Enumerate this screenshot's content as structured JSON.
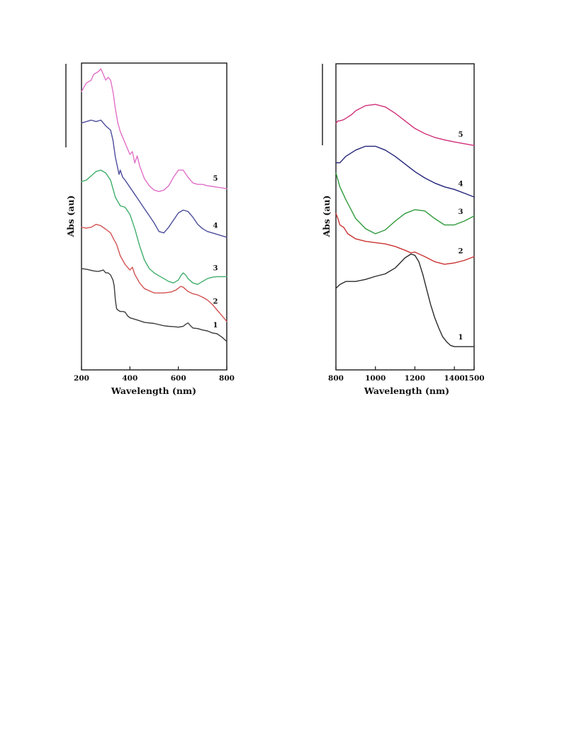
{
  "chart_data": [
    {
      "type": "line",
      "title": "",
      "xlabel": "Wavelength (nm)",
      "ylabel": "Abs (au)",
      "xlim": [
        200,
        800
      ],
      "ylim": [
        0,
        10
      ],
      "xticks": [
        "200",
        "400",
        "600",
        "800"
      ],
      "grid": false,
      "legend": "none",
      "series": [
        {
          "name": "1",
          "color": "#3c3c3c",
          "x": [
            200,
            220,
            250,
            270,
            290,
            300,
            310,
            320,
            330,
            335,
            340,
            345,
            350,
            360,
            370,
            380,
            390,
            400,
            430,
            460,
            500,
            540,
            560,
            580,
            600,
            620,
            630,
            640,
            650,
            660,
            680,
            700,
            720,
            740,
            760,
            780,
            800
          ],
          "y": [
            3.0,
            2.98,
            2.92,
            2.9,
            2.95,
            2.85,
            2.85,
            2.78,
            2.6,
            2.4,
            1.9,
            1.6,
            1.55,
            1.5,
            1.5,
            1.48,
            1.35,
            1.28,
            1.2,
            1.12,
            1.08,
            1.0,
            0.98,
            0.97,
            0.95,
            0.98,
            1.05,
            1.1,
            1.0,
            0.92,
            0.9,
            0.85,
            0.82,
            0.75,
            0.72,
            0.6,
            0.45
          ]
        },
        {
          "name": "2",
          "color": "#d25252",
          "x": [
            200,
            220,
            240,
            260,
            280,
            300,
            320,
            335,
            345,
            360,
            380,
            400,
            410,
            420,
            440,
            460,
            500,
            540,
            570,
            590,
            610,
            620,
            640,
            660,
            680,
            700,
            720,
            740,
            760,
            780,
            800
          ],
          "y": [
            4.45,
            4.42,
            4.45,
            4.55,
            4.5,
            4.38,
            4.25,
            4.0,
            3.85,
            3.45,
            3.15,
            2.95,
            3.05,
            2.8,
            2.5,
            2.3,
            2.15,
            2.15,
            2.18,
            2.25,
            2.38,
            2.35,
            2.2,
            2.12,
            2.08,
            2.0,
            1.9,
            1.75,
            1.55,
            1.35,
            1.15
          ]
        },
        {
          "name": "3",
          "color": "#3fae6b",
          "x": [
            200,
            220,
            240,
            260,
            280,
            300,
            320,
            340,
            360,
            380,
            400,
            420,
            440,
            460,
            480,
            500,
            520,
            540,
            560,
            580,
            600,
            610,
            620,
            630,
            640,
            660,
            680,
            700,
            720,
            740,
            760,
            780,
            800
          ],
          "y": [
            6.05,
            6.1,
            6.25,
            6.4,
            6.45,
            6.35,
            6.1,
            5.5,
            5.2,
            5.15,
            4.9,
            4.4,
            3.8,
            3.3,
            3.0,
            2.85,
            2.75,
            2.65,
            2.55,
            2.5,
            2.6,
            2.75,
            2.85,
            2.78,
            2.65,
            2.5,
            2.45,
            2.55,
            2.65,
            2.7,
            2.72,
            2.72,
            2.72
          ]
        },
        {
          "name": "4",
          "color": "#4c4c9c",
          "x": [
            200,
            220,
            240,
            260,
            280,
            300,
            320,
            330,
            340,
            350,
            355,
            360,
            370,
            380,
            400,
            420,
            440,
            460,
            480,
            500,
            520,
            540,
            560,
            580,
            600,
            620,
            640,
            660,
            680,
            700,
            720,
            740,
            760,
            780,
            800
          ],
          "y": [
            8.1,
            8.15,
            8.2,
            8.15,
            8.2,
            8.0,
            7.85,
            7.5,
            6.9,
            6.5,
            6.3,
            6.45,
            6.2,
            6.1,
            5.85,
            5.6,
            5.35,
            5.1,
            4.85,
            4.6,
            4.3,
            4.25,
            4.45,
            4.7,
            4.95,
            5.05,
            5.0,
            4.8,
            4.55,
            4.4,
            4.3,
            4.25,
            4.2,
            4.15,
            4.1
          ]
        },
        {
          "name": "5",
          "color": "#e070c8",
          "x": [
            200,
            210,
            220,
            240,
            250,
            260,
            270,
            280,
            290,
            300,
            310,
            320,
            330,
            340,
            350,
            360,
            380,
            400,
            410,
            420,
            430,
            440,
            460,
            480,
            500,
            520,
            540,
            560,
            580,
            600,
            620,
            640,
            660,
            680,
            700,
            720,
            740,
            760,
            780,
            800
          ],
          "y": [
            9.2,
            9.35,
            9.5,
            9.6,
            9.8,
            9.85,
            9.9,
            10.0,
            9.8,
            9.6,
            9.7,
            9.6,
            9.2,
            8.6,
            8.1,
            7.8,
            7.4,
            7.0,
            7.1,
            6.7,
            6.95,
            6.6,
            6.15,
            5.9,
            5.75,
            5.7,
            5.75,
            5.9,
            6.2,
            6.45,
            6.45,
            6.2,
            6.0,
            5.95,
            5.95,
            5.9,
            5.88,
            5.85,
            5.83,
            5.8
          ]
        }
      ]
    },
    {
      "type": "line",
      "title": "",
      "xlabel": "Wavelength (nm)",
      "ylabel": "Abs (au)",
      "xlim": [
        800,
        1500
      ],
      "ylim": [
        0,
        10
      ],
      "xticks": [
        "800",
        "1000",
        "1200",
        "1400",
        "1500"
      ],
      "grid": false,
      "legend": "none",
      "series": [
        {
          "name": "1",
          "color": "#2a2a2a",
          "x": [
            800,
            820,
            850,
            900,
            950,
            1000,
            1050,
            1100,
            1150,
            1180,
            1200,
            1220,
            1240,
            1260,
            1280,
            1300,
            1320,
            1340,
            1360,
            1380,
            1400,
            1450,
            1500
          ],
          "y": [
            2.35,
            2.5,
            2.62,
            2.62,
            2.7,
            2.82,
            2.92,
            3.15,
            3.55,
            3.7,
            3.65,
            3.4,
            2.9,
            2.3,
            1.7,
            1.2,
            0.8,
            0.45,
            0.25,
            0.1,
            0.05,
            0.05,
            0.05
          ]
        },
        {
          "name": "2",
          "color": "#cc3333",
          "x": [
            800,
            810,
            820,
            840,
            860,
            880,
            900,
            950,
            1000,
            1050,
            1100,
            1150,
            1180,
            1200,
            1250,
            1300,
            1350,
            1400,
            1450,
            1500
          ],
          "y": [
            5.3,
            5.1,
            4.85,
            4.75,
            4.5,
            4.4,
            4.3,
            4.2,
            4.15,
            4.1,
            4.0,
            3.85,
            3.75,
            3.78,
            3.6,
            3.4,
            3.3,
            3.35,
            3.45,
            3.6
          ]
        },
        {
          "name": "3",
          "color": "#2e9a3a",
          "x": [
            800,
            820,
            850,
            900,
            950,
            1000,
            1050,
            1100,
            1150,
            1200,
            1250,
            1300,
            1350,
            1400,
            1450,
            1500
          ],
          "y": [
            6.9,
            6.35,
            5.85,
            5.1,
            4.7,
            4.5,
            4.65,
            5.0,
            5.3,
            5.45,
            5.4,
            5.1,
            4.85,
            4.85,
            5.0,
            5.2
          ]
        },
        {
          "name": "4",
          "color": "#22227a",
          "x": [
            800,
            820,
            850,
            900,
            950,
            1000,
            1050,
            1100,
            1150,
            1200,
            1250,
            1300,
            1350,
            1400,
            1450,
            1500
          ],
          "y": [
            7.3,
            7.3,
            7.55,
            7.8,
            7.95,
            7.95,
            7.8,
            7.55,
            7.25,
            6.95,
            6.7,
            6.5,
            6.35,
            6.25,
            6.1,
            5.95
          ]
        },
        {
          "name": "5",
          "color": "#d0307a",
          "x": [
            800,
            810,
            820,
            840,
            860,
            880,
            900,
            950,
            1000,
            1050,
            1100,
            1150,
            1200,
            1250,
            1300,
            1350,
            1400,
            1450,
            1500
          ],
          "y": [
            8.85,
            8.95,
            8.95,
            9.0,
            9.1,
            9.2,
            9.35,
            9.55,
            9.6,
            9.5,
            9.25,
            8.95,
            8.65,
            8.45,
            8.3,
            8.2,
            8.12,
            8.05,
            7.98
          ]
        }
      ]
    }
  ]
}
